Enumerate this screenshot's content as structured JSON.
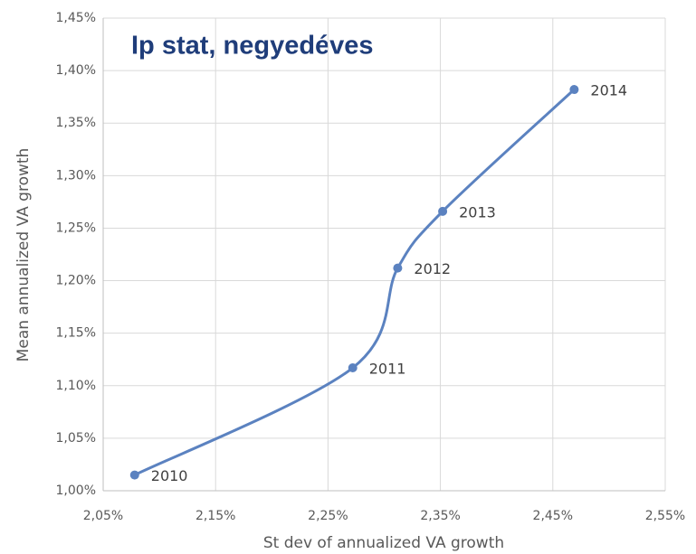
{
  "chart_data": {
    "type": "scatter",
    "title": "Ip stat, negyedéves",
    "xlabel": "St dev of annualized VA growth",
    "ylabel": "Mean annualized VA growth",
    "series": [
      {
        "name": "Ip stat",
        "color": "#5b82c0",
        "x": [
          2.078,
          2.272,
          2.312,
          2.352,
          2.469
        ],
        "values": [
          1.015,
          1.117,
          1.212,
          1.266,
          1.382
        ],
        "labels": [
          "2010",
          "2011",
          "2012",
          "2013",
          "2014"
        ]
      }
    ],
    "xlim": [
      2.05,
      2.55
    ],
    "xticks": [
      {
        "value": 2.05,
        "label": "2,05%"
      },
      {
        "value": 2.15,
        "label": "2,15%"
      },
      {
        "value": 2.25,
        "label": "2,25%"
      },
      {
        "value": 2.35,
        "label": "2,35%"
      },
      {
        "value": 2.45,
        "label": "2,45%"
      },
      {
        "value": 2.55,
        "label": "2,55%"
      }
    ],
    "ylim": [
      1.0,
      1.45
    ],
    "yticks": [
      {
        "value": 1.0,
        "label": "1,00%"
      },
      {
        "value": 1.05,
        "label": "1,05%"
      },
      {
        "value": 1.1,
        "label": "1,10%"
      },
      {
        "value": 1.15,
        "label": "1,15%"
      },
      {
        "value": 1.2,
        "label": "1,20%"
      },
      {
        "value": 1.25,
        "label": "1,25%"
      },
      {
        "value": 1.3,
        "label": "1,30%"
      },
      {
        "value": 1.35,
        "label": "1,35%"
      },
      {
        "value": 1.4,
        "label": "1,40%"
      },
      {
        "value": 1.45,
        "label": "1,45%"
      }
    ],
    "grid": true
  }
}
